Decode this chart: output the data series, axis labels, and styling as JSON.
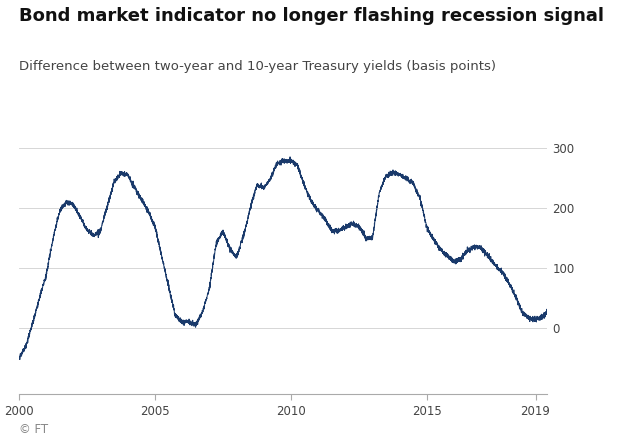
{
  "title": "Bond market indicator no longer flashing recession signal",
  "subtitle": "Difference between two-year and 10-year Treasury yields (basis points)",
  "footer": "© FT",
  "line_color": "#1a3a6b",
  "background_color": "#ffffff",
  "grid_color": "#d0d0d0",
  "title_fontsize": 13,
  "subtitle_fontsize": 9.5,
  "footer_fontsize": 8.5,
  "xlim": [
    2000.0,
    2019.42
  ],
  "ylim": [
    -110,
    340
  ],
  "yticks": [
    0,
    100,
    200,
    300
  ],
  "xticks": [
    2000,
    2005,
    2010,
    2015,
    2019
  ],
  "key_dates": [
    2000.0,
    2000.25,
    2000.5,
    2000.75,
    2001.0,
    2001.25,
    2001.5,
    2001.75,
    2002.0,
    2002.25,
    2002.5,
    2002.75,
    2003.0,
    2003.25,
    2003.5,
    2003.75,
    2004.0,
    2004.25,
    2004.5,
    2004.75,
    2005.0,
    2005.25,
    2005.5,
    2005.75,
    2006.0,
    2006.25,
    2006.5,
    2006.75,
    2007.0,
    2007.25,
    2007.5,
    2007.75,
    2008.0,
    2008.25,
    2008.5,
    2008.75,
    2009.0,
    2009.25,
    2009.5,
    2009.75,
    2010.0,
    2010.25,
    2010.5,
    2010.75,
    2011.0,
    2011.25,
    2011.5,
    2011.75,
    2012.0,
    2012.25,
    2012.5,
    2012.75,
    2013.0,
    2013.25,
    2013.5,
    2013.75,
    2014.0,
    2014.25,
    2014.5,
    2014.75,
    2015.0,
    2015.25,
    2015.5,
    2015.75,
    2016.0,
    2016.25,
    2016.5,
    2016.75,
    2017.0,
    2017.25,
    2017.5,
    2017.75,
    2018.0,
    2018.25,
    2018.5,
    2018.75,
    2019.0,
    2019.25,
    2019.42
  ],
  "key_values": [
    -50,
    -30,
    10,
    50,
    90,
    150,
    195,
    210,
    205,
    185,
    165,
    155,
    165,
    205,
    245,
    260,
    255,
    235,
    215,
    195,
    170,
    120,
    70,
    20,
    10,
    12,
    8,
    30,
    70,
    145,
    165,
    140,
    125,
    160,
    205,
    245,
    240,
    255,
    280,
    285,
    285,
    275,
    240,
    215,
    200,
    185,
    165,
    165,
    170,
    175,
    170,
    150,
    150,
    225,
    255,
    260,
    255,
    248,
    238,
    215,
    165,
    145,
    130,
    120,
    110,
    115,
    128,
    135,
    130,
    118,
    105,
    92,
    75,
    52,
    25,
    15,
    12,
    18,
    28
  ]
}
